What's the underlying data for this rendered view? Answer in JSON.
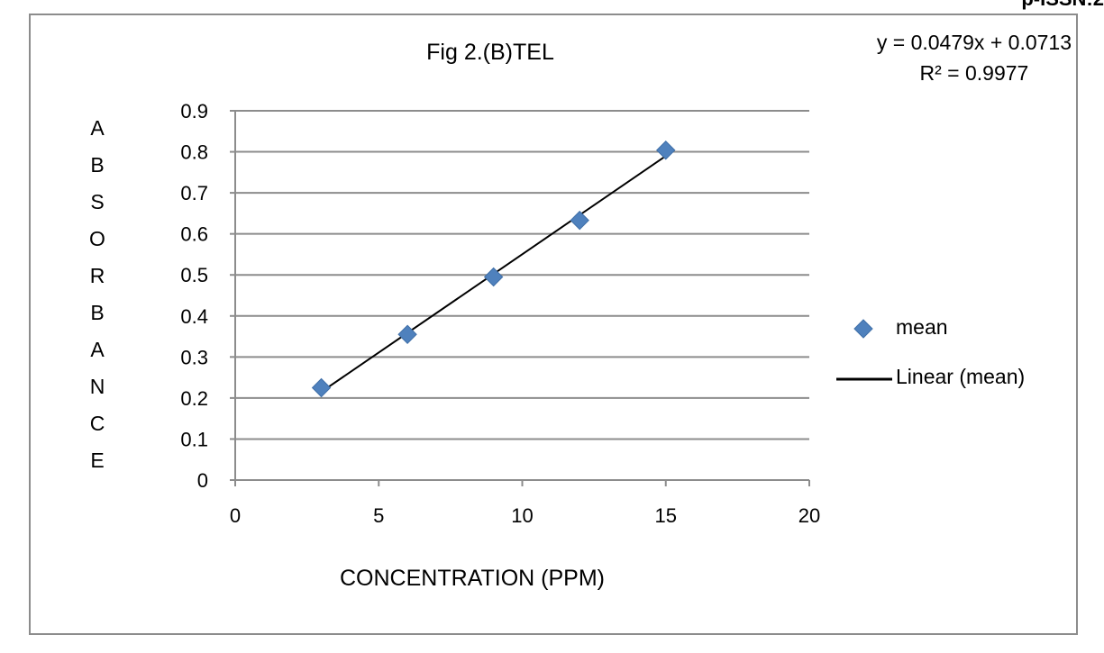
{
  "page_header": "p-ISSN:2",
  "trendline_equation": "y = 0.0479x + 0.0713",
  "trendline_r2": "R² = 0.9977",
  "chart_data": {
    "type": "scatter",
    "title": "Fig 2.(B)TEL",
    "xlabel": "CONCENTRATION (PPM)",
    "ylabel": "ABSORBANCE",
    "xlim": [
      0,
      20
    ],
    "ylim": [
      0,
      0.9
    ],
    "x_ticks": [
      "0",
      "5",
      "10",
      "15",
      "20"
    ],
    "y_ticks": [
      "0",
      "0.1",
      "0.2",
      "0.3",
      "0.4",
      "0.5",
      "0.6",
      "0.7",
      "0.8",
      "0.9"
    ],
    "grid": "horizontal",
    "legend_placement": "right",
    "series": [
      {
        "name": "mean",
        "marker": "diamond",
        "color": "#4f81bd",
        "points": [
          {
            "x": 3,
            "y": 0.225
          },
          {
            "x": 6,
            "y": 0.355
          },
          {
            "x": 9,
            "y": 0.495
          },
          {
            "x": 12,
            "y": 0.633
          },
          {
            "x": 15,
            "y": 0.804
          }
        ]
      }
    ],
    "trendline": {
      "name": "Linear (mean)",
      "color": "#000000",
      "slope": 0.0479,
      "intercept": 0.0713,
      "x_range": [
        3,
        15
      ]
    }
  }
}
